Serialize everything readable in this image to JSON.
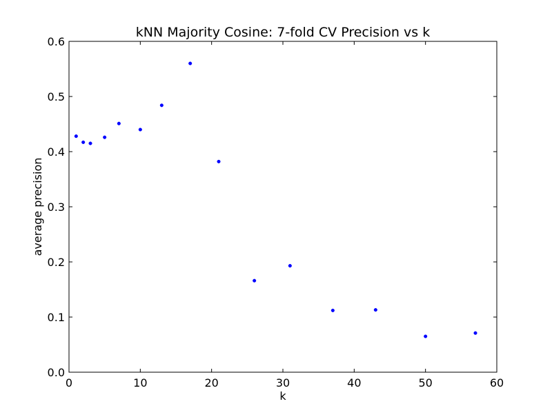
{
  "chart_data": {
    "type": "scatter",
    "title": "kNN Majority Cosine: 7-fold CV Precision vs k",
    "xlabel": "k",
    "ylabel": "average precision",
    "xlim": [
      0,
      60
    ],
    "ylim": [
      0.0,
      0.6
    ],
    "x_ticks": [
      "0",
      "10",
      "20",
      "30",
      "40",
      "50",
      "60"
    ],
    "y_ticks": [
      "0.0",
      "0.1",
      "0.2",
      "0.3",
      "0.4",
      "0.5",
      "0.6"
    ],
    "grid": false,
    "marker_color": "#0000ff",
    "series": [
      {
        "x": [
          1,
          2,
          3,
          5,
          7,
          10,
          13,
          17,
          21,
          26,
          31,
          37,
          43,
          50,
          57
        ],
        "y": [
          0.428,
          0.417,
          0.415,
          0.426,
          0.451,
          0.44,
          0.484,
          0.56,
          0.382,
          0.166,
          0.193,
          0.112,
          0.113,
          0.065,
          0.071
        ]
      }
    ]
  }
}
